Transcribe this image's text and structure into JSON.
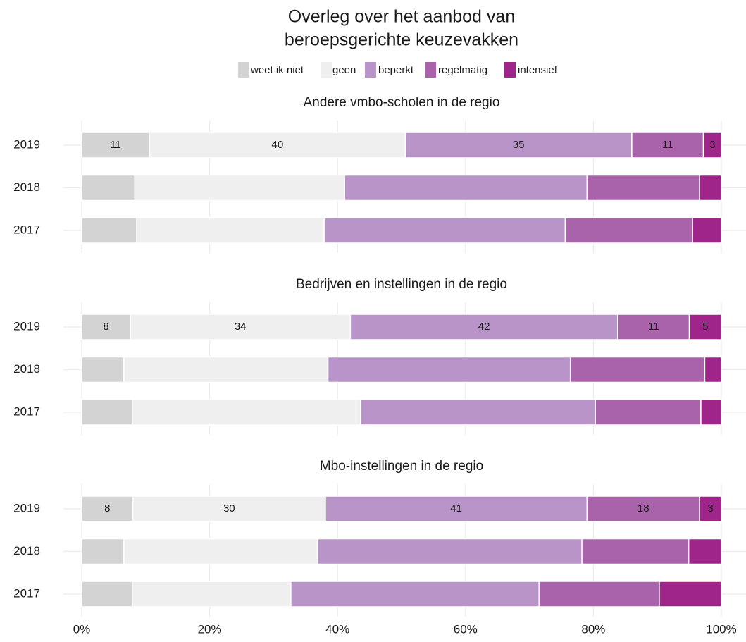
{
  "title": [
    "Overleg over het aanbod van",
    "beroepsgerichte keuzevakken"
  ],
  "chart_data": [
    {
      "type": "bar",
      "title": "Andere vmbo-scholen in de regio",
      "categories": [
        "2019",
        "2018",
        "2017"
      ],
      "series": [
        {
          "name": "weet ik niet",
          "color": "#d3d3d3",
          "values": [
            10.6,
            8.3,
            8.6
          ],
          "value_labels": [
            "11",
            null,
            null
          ]
        },
        {
          "name": "geen",
          "color": "#efefef",
          "values": [
            40.0,
            32.8,
            29.3
          ],
          "value_labels": [
            "40",
            null,
            null
          ]
        },
        {
          "name": "beperkt",
          "color": "#b994c9",
          "values": [
            35.4,
            37.9,
            37.7
          ],
          "value_labels": [
            "35",
            null,
            null
          ]
        },
        {
          "name": "regelmatig",
          "color": "#a963ab",
          "values": [
            11.2,
            17.6,
            19.9
          ],
          "value_labels": [
            "11",
            null,
            null
          ]
        },
        {
          "name": "intensief",
          "color": "#a0258a",
          "values": [
            2.8,
            3.4,
            4.5
          ],
          "value_labels": [
            "3",
            null,
            null
          ]
        }
      ],
      "xlim": [
        0,
        100
      ],
      "xticks": [
        {
          "value": 0,
          "label": "0%"
        },
        {
          "value": 20,
          "label": "20%"
        },
        {
          "value": 40,
          "label": "40%"
        },
        {
          "value": 60,
          "label": "60%"
        },
        {
          "value": 80,
          "label": "80%"
        },
        {
          "value": 100,
          "label": "100%"
        }
      ],
      "grid": true
    },
    {
      "type": "bar",
      "title": "Bedrijven en instellingen in de regio",
      "categories": [
        "2019",
        "2018",
        "2017"
      ],
      "series": [
        {
          "name": "weet ik niet",
          "color": "#d3d3d3",
          "values": [
            7.6,
            6.6,
            7.9
          ],
          "value_labels": [
            "8",
            null,
            null
          ]
        },
        {
          "name": "geen",
          "color": "#efefef",
          "values": [
            34.4,
            31.9,
            35.7
          ],
          "value_labels": [
            "34",
            null,
            null
          ]
        },
        {
          "name": "beperkt",
          "color": "#b994c9",
          "values": [
            41.8,
            37.9,
            36.7
          ],
          "value_labels": [
            "42",
            null,
            null
          ]
        },
        {
          "name": "regelmatig",
          "color": "#a963ab",
          "values": [
            11.2,
            21.0,
            16.5
          ],
          "value_labels": [
            "11",
            null,
            null
          ]
        },
        {
          "name": "intensief",
          "color": "#a0258a",
          "values": [
            5.0,
            2.6,
            3.2
          ],
          "value_labels": [
            "5",
            null,
            null
          ]
        }
      ],
      "xlim": [
        0,
        100
      ],
      "xticks": [
        {
          "value": 0,
          "label": "0%"
        },
        {
          "value": 20,
          "label": "20%"
        },
        {
          "value": 40,
          "label": "40%"
        },
        {
          "value": 60,
          "label": "60%"
        },
        {
          "value": 80,
          "label": "80%"
        },
        {
          "value": 100,
          "label": "100%"
        }
      ],
      "grid": true
    },
    {
      "type": "bar",
      "title": "Mbo-instellingen in de regio",
      "categories": [
        "2019",
        "2018",
        "2017"
      ],
      "series": [
        {
          "name": "weet ik niet",
          "color": "#d3d3d3",
          "values": [
            8.0,
            6.6,
            7.9
          ],
          "value_labels": [
            "8",
            null,
            null
          ]
        },
        {
          "name": "geen",
          "color": "#efefef",
          "values": [
            30.1,
            30.3,
            24.8
          ],
          "value_labels": [
            "30",
            null,
            null
          ]
        },
        {
          "name": "beperkt",
          "color": "#b994c9",
          "values": [
            40.9,
            41.3,
            38.8
          ],
          "value_labels": [
            "41",
            null,
            null
          ]
        },
        {
          "name": "regelmatig",
          "color": "#a963ab",
          "values": [
            17.6,
            16.7,
            18.8
          ],
          "value_labels": [
            "18",
            null,
            null
          ]
        },
        {
          "name": "intensief",
          "color": "#a0258a",
          "values": [
            3.4,
            5.1,
            9.7
          ],
          "value_labels": [
            "3",
            null,
            null
          ]
        }
      ],
      "xlim": [
        0,
        100
      ],
      "xticks": [
        {
          "value": 0,
          "label": "0%"
        },
        {
          "value": 20,
          "label": "20%"
        },
        {
          "value": 40,
          "label": "40%"
        },
        {
          "value": 60,
          "label": "60%"
        },
        {
          "value": 80,
          "label": "80%"
        },
        {
          "value": 100,
          "label": "100%"
        }
      ],
      "grid": true
    }
  ]
}
